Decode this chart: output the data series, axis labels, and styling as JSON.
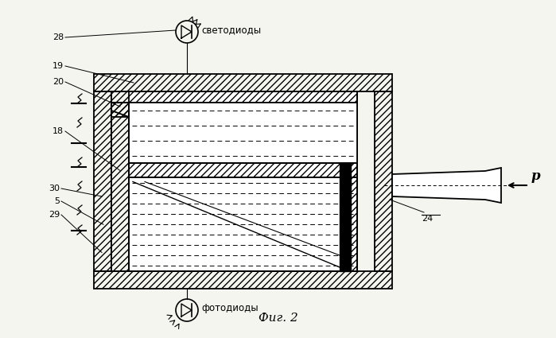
{
  "bg": "#f5f5f0",
  "lc": "#000000",
  "title": "Фиг. 2",
  "label_28": "28",
  "label_19": "19",
  "label_20": "20",
  "label_18": "18",
  "label_30": "30",
  "label_5": "5",
  "label_29": "29",
  "label_24": "24",
  "label_p": "p",
  "label_led": "светодиоды",
  "label_photo": "фотодиоды"
}
